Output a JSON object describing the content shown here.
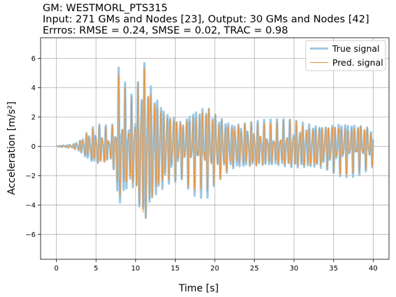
{
  "header": {
    "line1": "GM: WESTMORL_PTS315",
    "line2": "Input: 271 GMs and Nodes [23], Output: 30 GMs and Nodes [42]",
    "line3": "Errros: RMSE = 0.24, SMSE = 0.02, TRAC = 0.98"
  },
  "chart_data": {
    "type": "line",
    "title": "GM: WESTMORL_PTS315",
    "xlabel": "Time [s]",
    "ylabel": "Acceleration [m/s²]",
    "xlim": [
      -2,
      42
    ],
    "ylim": [
      -7.7,
      7.4
    ],
    "xticks": [
      0,
      5,
      10,
      15,
      20,
      25,
      30,
      35,
      40
    ],
    "yticks": [
      -6,
      -4,
      -2,
      0,
      2,
      4,
      6
    ],
    "xtick_labels": [
      "0",
      "5",
      "10",
      "15",
      "20",
      "25",
      "30",
      "35",
      "40"
    ],
    "ytick_labels": [
      "−6",
      "−4",
      "−2",
      "0",
      "2",
      "4",
      "6"
    ],
    "grid": true,
    "legend_position": "upper right",
    "envelope": {
      "t": [
        0,
        2,
        3,
        3.5,
        4,
        5,
        6,
        7,
        7.8,
        8.2,
        9,
        10,
        10.8,
        11.2,
        12,
        13,
        14,
        15,
        16,
        17,
        18,
        19,
        20,
        22,
        25,
        28,
        30,
        32,
        34,
        36,
        38,
        40
      ],
      "amp": [
        0.02,
        0.15,
        0.5,
        0.9,
        1.2,
        1.6,
        1.5,
        1.2,
        5.2,
        5.5,
        3.5,
        3.8,
        6.5,
        6.7,
        5.0,
        4.0,
        3.0,
        2.6,
        2.2,
        3.2,
        3.4,
        3.6,
        2.8,
        2.0,
        1.8,
        1.8,
        1.9,
        1.9,
        1.8,
        2.1,
        2.0,
        1.5
      ]
    },
    "series": [
      {
        "name": "True signal",
        "color": "#9ec8e4",
        "style": "thick"
      },
      {
        "name": "Pred. signal",
        "color": "#f28e2b",
        "style": "thin"
      }
    ]
  }
}
